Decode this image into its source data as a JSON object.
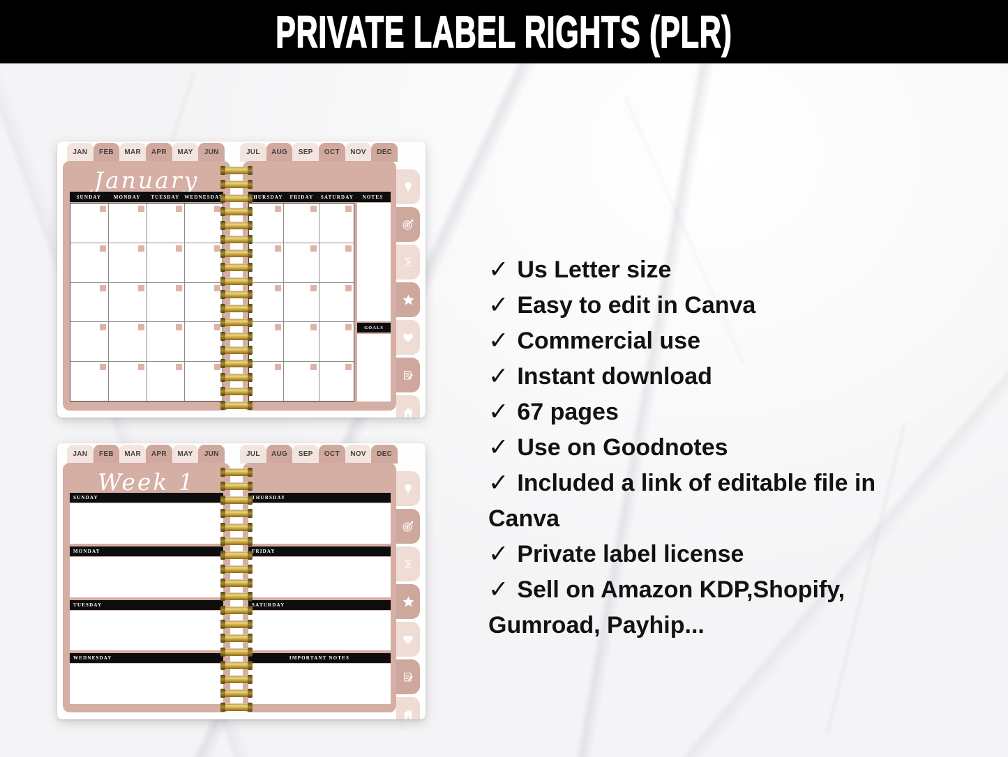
{
  "banner": {
    "title": "PRIVATE LABEL RIGHTS (PLR)"
  },
  "tabs": {
    "first_half": [
      "JAN",
      "FEB",
      "MAR",
      "APR",
      "MAY",
      "JUN"
    ],
    "second_half": [
      "JUL",
      "AUG",
      "SEP",
      "OCT",
      "NOV",
      "DEC"
    ]
  },
  "side_tabs": [
    "lightbulb",
    "target",
    "dumbbell",
    "star",
    "heart",
    "notepad",
    "home"
  ],
  "monthly": {
    "title": "January",
    "left_day_headers": [
      "SUNDAY",
      "MONDAY",
      "TUESDAY",
      "WEDNESDAY"
    ],
    "right_day_headers": [
      "THURSDAY",
      "FRIDAY",
      "SATURDAY"
    ],
    "notes_header": "NOTES",
    "goals_header": "GOALS",
    "rows": 5
  },
  "weekly": {
    "title": "Week 1",
    "left_sections": [
      "SUNDAY",
      "MONDAY",
      "TUESDAY",
      "WEDNESDAY"
    ],
    "right_sections": [
      "THURSDAY",
      "FRIDAY",
      "SATURDAY"
    ],
    "notes_section": "IMPORTANT NOTES"
  },
  "features": {
    "check": "✓",
    "items": [
      "Us Letter size",
      "Easy to edit in Canva",
      "Commercial use",
      "Instant download",
      "67 pages",
      "Use on Goodnotes",
      "Included a link of editable file in Canva",
      "Private label license",
      "Sell on Amazon KDP,Shopify, Gumroad, Payhip..."
    ]
  },
  "colors": {
    "page_pink": "#d5aea4",
    "tab_light": "#f2e4de",
    "tab_dark": "#d0a89d",
    "corner_square": "#ddb4a9",
    "bar_black": "#0d0d0d",
    "gold_binding": "#caa53d",
    "banner_black": "#000000"
  }
}
